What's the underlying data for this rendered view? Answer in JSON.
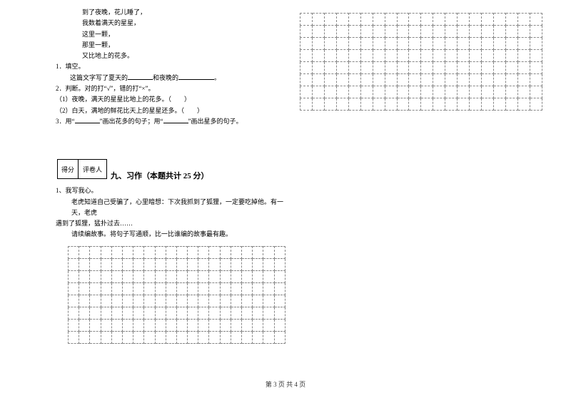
{
  "poem": {
    "line1": "到了夜晚，花儿睡了，",
    "line2": "我数着满天的星星，",
    "line3": "这里一颗，",
    "line4": "那里一颗，",
    "line5": "又比地上的花多。"
  },
  "q1": {
    "num": "1．填空。",
    "text_before": "这篇文字写了夏天的",
    "text_mid": "和夜晚的",
    "text_after": "。"
  },
  "q2": {
    "num": "2．判断。对的打“√”，错的打“×”。",
    "sub1": "（1）夜晚，满天的星星比地上的花多。（　　）",
    "sub2": "（2）白天，满地的鲜花比天上的星星还多。（　　）"
  },
  "q3": {
    "text_a": "3．用“",
    "text_b": "”画出花多的句子；用“",
    "text_c": "”画出星多的句子。"
  },
  "scorebox": {
    "cell1": "得分",
    "cell2": "评卷人"
  },
  "section9": {
    "title": "九、习作（本题共计 25 分）"
  },
  "essay": {
    "intro": "1、我写我心。",
    "para1_a": "老虎知道自己受骗了，心里暗想：下次我抓到了狐狸，一定要吃掉他。有一天，老虎",
    "para1_b": "遇到了狐狸，猛扑过去……",
    "para2": "请续编故事。将句子写通顺，比一比谁编的故事最有趣。"
  },
  "left_grid": {
    "rows": 8,
    "cols": 20
  },
  "right_grid": {
    "rows": 8,
    "cols": 20
  },
  "footer": "第 3 页 共 4 页"
}
